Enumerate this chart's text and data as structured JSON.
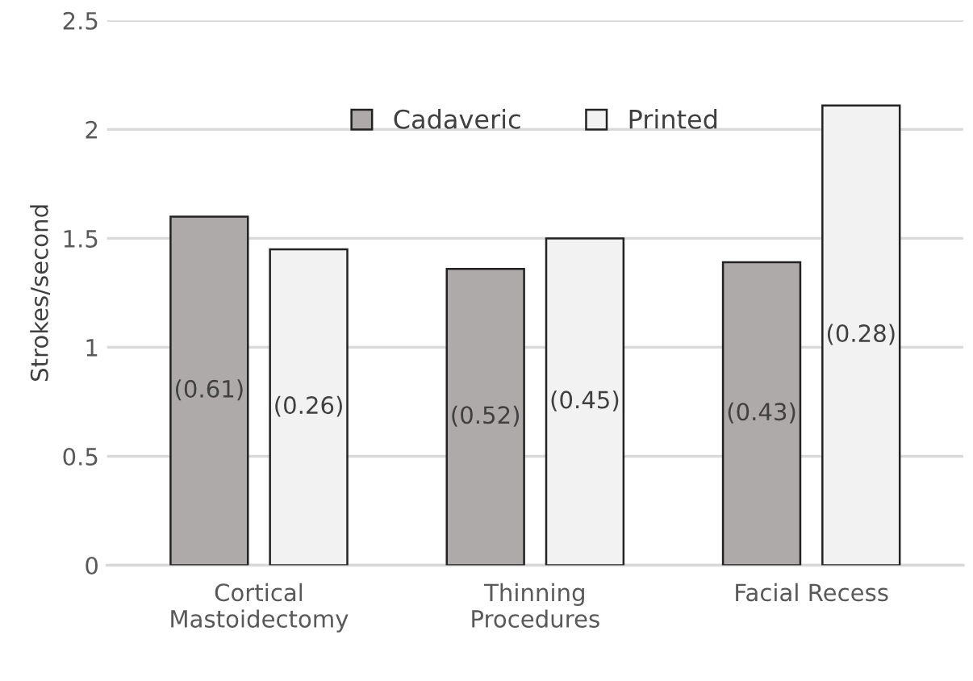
{
  "chart_data": {
    "type": "bar",
    "ylabel": "Strokes/second",
    "categories": [
      "Cortical\nMastoidectomy",
      "Thinning\nProcedures",
      "Facial Recess"
    ],
    "series": [
      {
        "name": "Cadaveric",
        "color": "#aeaaaa",
        "values": [
          1.6,
          1.36,
          1.39
        ]
      },
      {
        "name": "Printed",
        "color": "#f2f2f2",
        "values": [
          1.45,
          1.5,
          2.11
        ]
      }
    ],
    "annotations": [
      "(0.61)",
      "(0.26)",
      "(0.52)",
      "(0.45)",
      "(0.43)",
      "(0.28)"
    ],
    "ylim": [
      0,
      2.5
    ],
    "yticks": [
      0,
      0.5,
      1,
      1.5,
      2,
      2.5
    ],
    "grid": "y",
    "legend": "top"
  }
}
